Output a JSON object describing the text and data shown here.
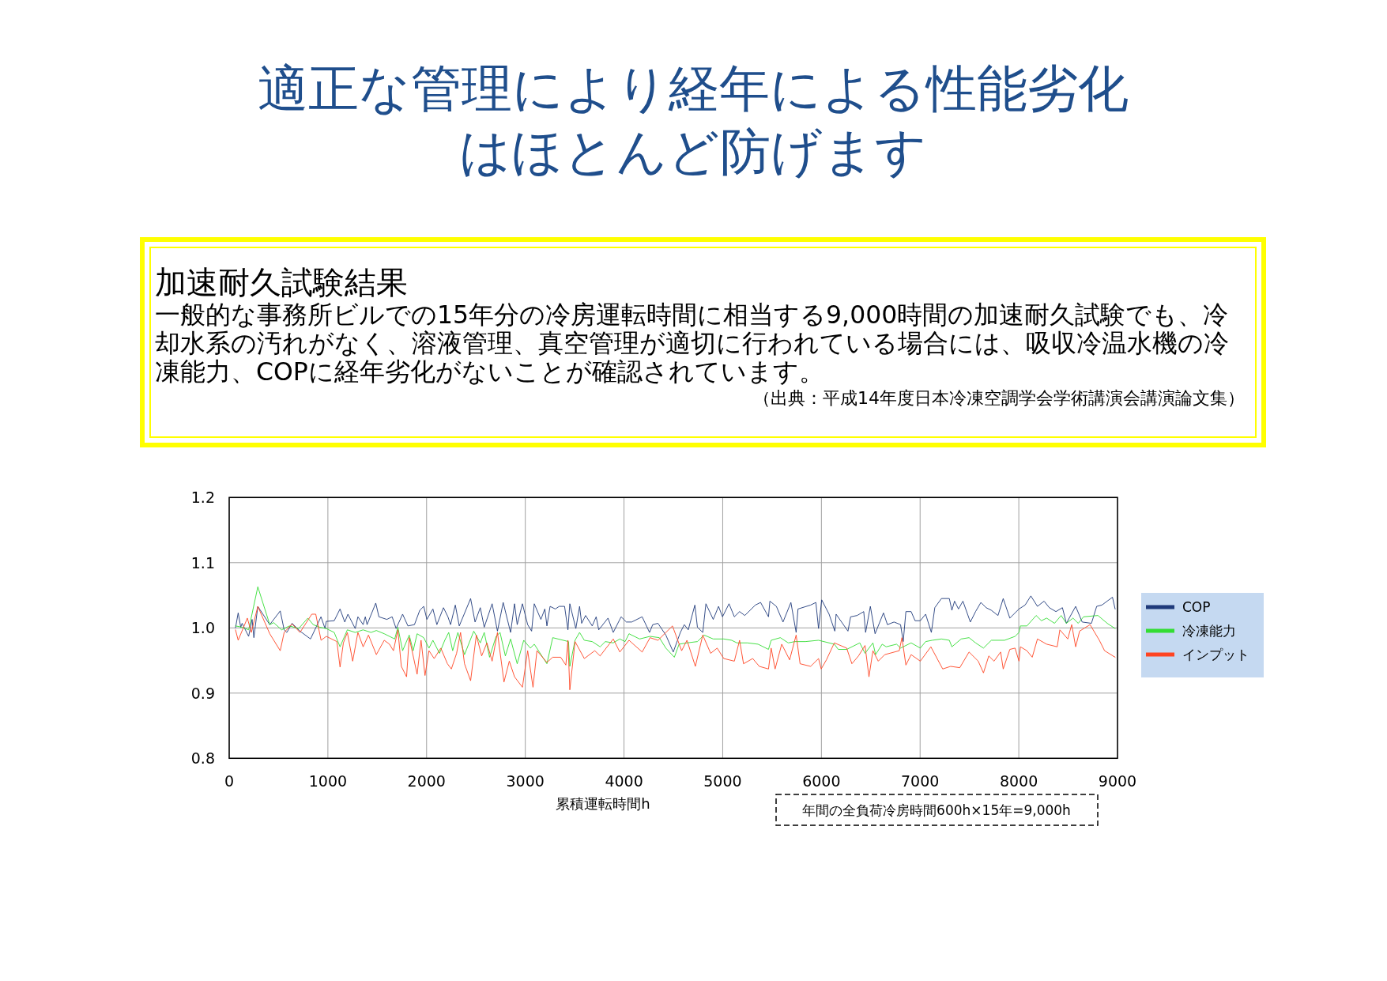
{
  "chart_data": {
    "type": "line",
    "title": "適正な管理により経年による性能劣化はほとんど防げます",
    "subtitle": "加速耐久試験結果",
    "annotations": [
      "一般的な事務所ビルでの15年分の冷房運転時間に相当する9,000時間の加速耐久試験でも、冷却水系の汚れがなく、溶液管理、真空管理が適切に行われている場合には、吸収冷温水機の冷凍能力、COPに経年劣化がないことが確認されています。",
      "（出典：平成14年度日本冷凍空調学会学術講演会講演論文集）",
      "年間の全負荷冷房時間600h×15年=9,000h"
    ],
    "xlabel": "累積運転時間h",
    "xlim": [
      0,
      9000
    ],
    "xticks": [
      0,
      1000,
      2000,
      3000,
      4000,
      5000,
      6000,
      7000,
      8000,
      9000
    ],
    "ylim": [
      0.8,
      1.2
    ],
    "yticks": [
      0.8,
      0.9,
      {
        "value": 1,
        "label": "1.0"
      },
      1.1,
      1.2
    ],
    "grid": true,
    "legend": "right",
    "series": [
      {
        "name": "COP",
        "color": "#1f3a7a",
        "x": [
          64,
          91,
          117,
          131,
          197,
          232,
          250,
          290,
          411,
          517,
          557,
          584,
          637,
          717,
          824,
          930,
          971,
          984,
          1064,
          1123,
          1171,
          1203,
          1277,
          1304,
          1357,
          1379,
          1397,
          1485,
          1517,
          1597,
          1651,
          1691,
          1757,
          1811,
          1877,
          1931,
          1971,
          2003,
          2064,
          2104,
          2171,
          2216,
          2243,
          2291,
          2331,
          2446,
          2491,
          2544,
          2584,
          2664,
          2718,
          2776,
          2851,
          2891,
          2918,
          2971,
          3024,
          3064,
          3091,
          3158,
          3198,
          3219,
          3251,
          3304,
          3344,
          3398,
          3432,
          3451,
          3512,
          3550,
          3571,
          3611,
          3678,
          3718,
          3744,
          3838,
          3891,
          3971,
          4024,
          4078,
          4184,
          4259,
          4291,
          4344,
          4424,
          4499,
          4571,
          4611,
          4651,
          4718,
          4744,
          4798,
          4830,
          4904,
          4958,
          4998,
          5064,
          5118,
          5171,
          5224,
          5331,
          5384,
          5464,
          5478,
          5544,
          5611,
          5691,
          5744,
          5763,
          5891,
          5944,
          5971,
          6003,
          6078,
          6136,
          6149,
          6269,
          6296,
          6362,
          6429,
          6448,
          6496,
          6544,
          6629,
          6669,
          6736,
          6802,
          6829,
          6856,
          6909,
          6949,
          7002,
          7056,
          7114,
          7149,
          7216,
          7296,
          7322,
          7349,
          7389,
          7434,
          7509,
          7562,
          7616,
          7669,
          7722,
          7789,
          7842,
          7909,
          8002,
          8064,
          8122,
          8189,
          8256,
          8309,
          8376,
          8442,
          8482,
          8576,
          8642,
          8736,
          8789,
          8842,
          8949,
          8976
        ],
        "values": [
          1.0,
          1.023,
          1.001,
          1.007,
          0.987,
          1.013,
          0.985,
          1.033,
          1.005,
          1.026,
          0.997,
          0.993,
          1.007,
          0.995,
          0.983,
          1.017,
          0.999,
          1.01,
          1.011,
          1.029,
          1.009,
          1.021,
          0.999,
          1.017,
          1.005,
          1.017,
          1.005,
          1.038,
          1.017,
          1.013,
          1.017,
          0.999,
          1.021,
          1.003,
          1.005,
          1.027,
          1.033,
          1.013,
          1.029,
          1.005,
          1.031,
          1.017,
          1.005,
          1.035,
          1.003,
          1.045,
          1.009,
          1.031,
          1.001,
          1.037,
          0.995,
          1.039,
          0.993,
          1.037,
          1.005,
          1.037,
          1.005,
          0.995,
          1.037,
          1.013,
          1.029,
          1.003,
          1.033,
          1.029,
          1.033,
          1.033,
          0.997,
          1.037,
          0.999,
          1.033,
          1.007,
          1.019,
          1.003,
          1.017,
          0.997,
          1.015,
          0.993,
          1.017,
          1.009,
          1.009,
          1.017,
          0.993,
          1.005,
          1.007,
          0.989,
          0.963,
          0.993,
          1.005,
          0.997,
          1.035,
          1.001,
          0.993,
          1.037,
          1.013,
          1.033,
          1.017,
          1.037,
          1.017,
          1.025,
          1.019,
          1.035,
          1.039,
          1.017,
          1.041,
          1.033,
          1.009,
          1.039,
          0.993,
          1.029,
          1.035,
          1.039,
          0.999,
          1.043,
          1.021,
          0.995,
          1.021,
          0.995,
          1.017,
          1.019,
          1.025,
          0.993,
          1.033,
          0.991,
          1.023,
          1.005,
          1.009,
          1.005,
          0.979,
          1.025,
          1.025,
          1.011,
          1.011,
          1.021,
          0.993,
          1.031,
          1.045,
          1.045,
          1.027,
          1.041,
          1.029,
          1.041,
          1.009,
          1.025,
          1.039,
          1.031,
          1.027,
          1.019,
          1.045,
          1.015,
          1.029,
          1.035,
          1.049,
          1.033,
          1.041,
          1.031,
          1.025,
          1.031,
          1.007,
          1.033,
          1.009,
          1.007,
          1.033,
          1.035,
          1.047,
          1.029
        ]
      },
      {
        "name": "冷凍能力",
        "color": "#33dd33",
        "x": [
          64,
          131,
          197,
          290,
          411,
          451,
          531,
          611,
          704,
          797,
          851,
          917,
          984,
          1064,
          1123,
          1197,
          1277,
          1357,
          1437,
          1491,
          1571,
          1677,
          1709,
          1757,
          1824,
          1864,
          1904,
          1971,
          2024,
          2064,
          2131,
          2184,
          2224,
          2264,
          2317,
          2384,
          2478,
          2544,
          2584,
          2638,
          2704,
          2744,
          2798,
          2851,
          2918,
          2984,
          3051,
          3091,
          3219,
          3278,
          3438,
          3451,
          3504,
          3550,
          3598,
          3678,
          3758,
          3811,
          3891,
          3958,
          4011,
          4051,
          4158,
          4264,
          4358,
          4424,
          4510,
          4558,
          4638,
          4744,
          4811,
          4904,
          5011,
          5091,
          5144,
          5251,
          5358,
          5464,
          5491,
          5584,
          5664,
          5731,
          5838,
          5971,
          6131,
          6171,
          6256,
          6389,
          6442,
          6522,
          6549,
          6616,
          6656,
          6762,
          6802,
          6909,
          7002,
          7056,
          7122,
          7216,
          7296,
          7322,
          7416,
          7496,
          7562,
          7642,
          7722,
          7856,
          7962,
          8002,
          8016,
          8082,
          8176,
          8229,
          8282,
          8362,
          8429,
          8482,
          8549,
          8602,
          8656,
          8802,
          8896,
          8976
        ],
        "values": [
          1.003,
          1.001,
          0.997,
          1.063,
          1.005,
          1.008,
          0.997,
          1.003,
          0.999,
          1.015,
          1.005,
          1.001,
          0.999,
          0.993,
          0.971,
          0.997,
          0.993,
          0.997,
          0.993,
          0.996,
          0.991,
          0.983,
          1.001,
          0.965,
          0.989,
          0.965,
          0.991,
          0.985,
          0.969,
          0.981,
          0.961,
          0.981,
          0.993,
          0.965,
          0.993,
          0.959,
          0.995,
          0.977,
          0.993,
          0.955,
          0.987,
          0.993,
          0.957,
          0.983,
          0.945,
          0.981,
          0.969,
          0.975,
          0.945,
          0.985,
          0.979,
          0.941,
          0.981,
          0.993,
          0.981,
          0.979,
          0.971,
          0.979,
          0.977,
          0.983,
          0.979,
          0.991,
          0.983,
          0.987,
          0.985,
          0.969,
          0.955,
          0.975,
          0.977,
          0.979,
          0.989,
          0.983,
          0.983,
          0.981,
          0.977,
          0.977,
          0.975,
          0.967,
          0.981,
          0.985,
          0.977,
          0.979,
          0.979,
          0.981,
          0.975,
          0.967,
          0.967,
          0.977,
          0.961,
          0.977,
          0.959,
          0.975,
          0.971,
          0.975,
          0.969,
          0.977,
          0.969,
          0.979,
          0.981,
          0.983,
          0.981,
          0.971,
          0.983,
          0.985,
          0.977,
          0.969,
          0.981,
          0.981,
          0.987,
          0.993,
          1.003,
          1.003,
          1.019,
          1.011,
          1.015,
          1.007,
          1.019,
          1.007,
          1.015,
          1.007,
          1.017,
          1.019,
          1.007,
          0.999
        ]
      },
      {
        "name": "インプット",
        "color": "#ff4422",
        "x": [
          64,
          91,
          184,
          224,
          290,
          411,
          517,
          557,
          637,
          717,
          837,
          877,
          931,
          984,
          1091,
          1123,
          1157,
          1197,
          1251,
          1304,
          1357,
          1411,
          1491,
          1571,
          1624,
          1664,
          1709,
          1744,
          1797,
          1824,
          1904,
          1944,
          1984,
          2024,
          2077,
          2144,
          2211,
          2251,
          2304,
          2344,
          2384,
          2446,
          2504,
          2558,
          2611,
          2664,
          2718,
          2784,
          2838,
          2891,
          2971,
          3024,
          3078,
          3118,
          3219,
          3278,
          3358,
          3411,
          3432,
          3451,
          3504,
          3598,
          3704,
          3758,
          3891,
          3958,
          4051,
          4184,
          4264,
          4344,
          4491,
          4584,
          4638,
          4723,
          4798,
          4878,
          4944,
          5011,
          5118,
          5171,
          5211,
          5304,
          5371,
          5464,
          5491,
          5531,
          5598,
          5678,
          5744,
          5784,
          5891,
          5971,
          5998,
          6051,
          6131,
          6256,
          6309,
          6376,
          6442,
          6482,
          6522,
          6576,
          6642,
          6789,
          6816,
          6856,
          6909,
          7002,
          7109,
          7229,
          7309,
          7402,
          7496,
          7589,
          7642,
          7696,
          7749,
          7816,
          7842,
          7909,
          7962,
          8002,
          8016,
          8082,
          8136,
          8189,
          8282,
          8389,
          8416,
          8496,
          8536,
          8576,
          8616,
          8722,
          8816,
          8869,
          8976
        ],
        "values": [
          0.997,
          0.981,
          1.015,
          0.993,
          1.033,
          0.991,
          0.965,
          0.993,
          1.006,
          0.993,
          1.021,
          1.021,
          0.981,
          0.987,
          0.979,
          0.94,
          0.977,
          0.993,
          0.949,
          0.993,
          0.971,
          0.989,
          0.959,
          0.981,
          0.975,
          0.965,
          0.997,
          0.941,
          0.925,
          0.985,
          0.929,
          0.981,
          0.927,
          0.965,
          0.953,
          0.969,
          0.945,
          0.937,
          0.961,
          0.993,
          0.945,
          0.919,
          0.989,
          0.957,
          0.977,
          0.949,
          0.993,
          0.917,
          0.949,
          0.925,
          0.909,
          0.965,
          0.909,
          0.965,
          0.947,
          0.955,
          0.955,
          0.943,
          0.981,
          0.905,
          0.979,
          0.953,
          0.965,
          0.957,
          0.983,
          0.963,
          0.981,
          0.963,
          0.985,
          0.981,
          1.003,
          0.965,
          0.981,
          0.941,
          0.989,
          0.961,
          0.969,
          0.953,
          0.949,
          0.981,
          0.945,
          0.953,
          0.941,
          0.937,
          0.969,
          0.937,
          0.975,
          0.951,
          0.989,
          0.945,
          0.941,
          0.953,
          0.937,
          0.951,
          0.977,
          0.969,
          0.945,
          0.957,
          0.973,
          0.925,
          0.965,
          0.949,
          0.959,
          0.965,
          0.985,
          0.943,
          0.959,
          0.949,
          0.971,
          0.937,
          0.941,
          0.939,
          0.963,
          0.949,
          0.931,
          0.957,
          0.949,
          0.963,
          0.937,
          0.967,
          0.969,
          0.949,
          0.971,
          0.965,
          0.955,
          0.983,
          0.975,
          0.971,
          0.997,
          0.983,
          1.005,
          0.971,
          0.995,
          1.005,
          0.981,
          0.965,
          0.955
        ]
      }
    ]
  }
}
